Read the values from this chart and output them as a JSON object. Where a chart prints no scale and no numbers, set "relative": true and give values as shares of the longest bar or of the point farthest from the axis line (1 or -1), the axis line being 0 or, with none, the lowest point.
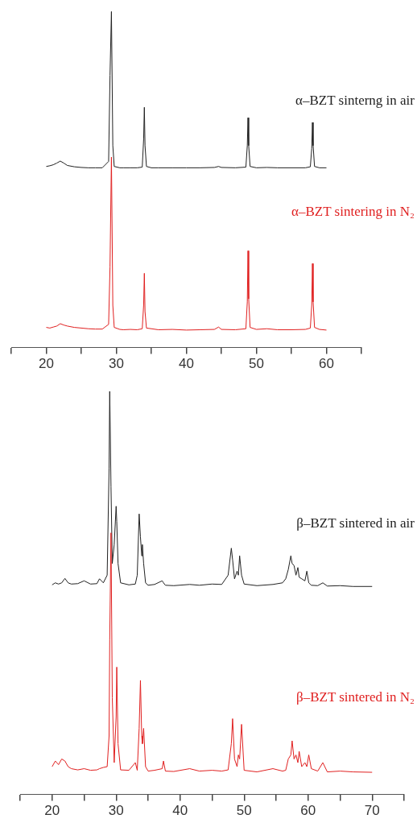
{
  "chart_data": [
    {
      "type": "line",
      "relative": true,
      "xlim": [
        15,
        65
      ],
      "xticks": [
        {
          "value": 15,
          "label": null
        },
        20,
        {
          "value": 25,
          "label": null
        },
        30,
        {
          "value": 35,
          "label": null
        },
        40,
        {
          "value": 45,
          "label": null
        },
        50,
        {
          "value": 55,
          "label": null
        },
        60,
        {
          "value": 65,
          "label": null
        }
      ],
      "grid": false,
      "legend": false,
      "marker": "none",
      "line_style": "solid",
      "series": [
        {
          "name": "α–BZT sintering in N₂",
          "color": "#e02020",
          "x": [
            20,
            20.5,
            21,
            21.5,
            22,
            22.5,
            23,
            24,
            25,
            26,
            27,
            28,
            28.9,
            29.1,
            29.3,
            29.5,
            29.7,
            30.5,
            31,
            32,
            33,
            33.7,
            33.9,
            34.0,
            34.1,
            34.3,
            35,
            36,
            38,
            40,
            42,
            44,
            44.6,
            45,
            47,
            48.5,
            48.7,
            48.8,
            48.9,
            49.1,
            50,
            51.5,
            53,
            55,
            57,
            57.7,
            57.9,
            58.0,
            58.1,
            58.3,
            59,
            60
          ],
          "values": [
            0.06,
            0.058,
            0.061,
            0.064,
            0.071,
            0.067,
            0.064,
            0.06,
            0.058,
            0.056,
            0.055,
            0.055,
            0.069,
            0.24,
            0.567,
            0.126,
            0.06,
            0.054,
            0.053,
            0.054,
            0.053,
            0.056,
            0.126,
            0.221,
            0.107,
            0.058,
            0.056,
            0.053,
            0.054,
            0.052,
            0.053,
            0.054,
            0.061,
            0.054,
            0.053,
            0.056,
            0.136,
            0.288,
            0.145,
            0.06,
            0.054,
            0.056,
            0.053,
            0.053,
            0.054,
            0.058,
            0.126,
            0.25,
            0.136,
            0.06,
            0.054,
            0.052
          ]
        },
        {
          "name": "α–BZT sinterng in air",
          "color": "#222222",
          "x": [
            20,
            20.5,
            21,
            21.5,
            22,
            22.5,
            23,
            24,
            25,
            26,
            27,
            28,
            28.9,
            29.1,
            29.3,
            29.5,
            29.7,
            30.5,
            31,
            32,
            33,
            33.7,
            33.9,
            34.0,
            34.1,
            34.3,
            35,
            36,
            38,
            40,
            42,
            44,
            44.6,
            45,
            47,
            48.5,
            48.7,
            48.8,
            48.9,
            49.1,
            50,
            51.5,
            53,
            55,
            57,
            57.7,
            57.9,
            58.0,
            58.1,
            58.3,
            59,
            60
          ],
          "values": [
            0.539,
            0.541,
            0.544,
            0.549,
            0.555,
            0.549,
            0.542,
            0.538,
            0.536,
            0.535,
            0.535,
            0.535,
            0.554,
            0.81,
            1.0,
            0.601,
            0.539,
            0.535,
            0.535,
            0.535,
            0.535,
            0.537,
            0.62,
            0.715,
            0.601,
            0.539,
            0.535,
            0.535,
            0.535,
            0.535,
            0.535,
            0.536,
            0.539,
            0.536,
            0.535,
            0.537,
            0.601,
            0.684,
            0.601,
            0.539,
            0.535,
            0.536,
            0.535,
            0.535,
            0.535,
            0.538,
            0.592,
            0.67,
            0.601,
            0.539,
            0.535,
            0.535
          ]
        }
      ]
    },
    {
      "type": "line",
      "relative": true,
      "xlim": [
        15,
        75
      ],
      "xticks": [
        {
          "value": 15,
          "label": null
        },
        20,
        {
          "value": 25,
          "label": null
        },
        30,
        {
          "value": 35,
          "label": null
        },
        40,
        {
          "value": 45,
          "label": null
        },
        50,
        {
          "value": 55,
          "label": null
        },
        60,
        {
          "value": 65,
          "label": null
        },
        70,
        {
          "value": 75,
          "label": null
        }
      ],
      "grid": false,
      "legend": false,
      "marker": "none",
      "line_style": "solid",
      "series": [
        {
          "name": "β–BZT sintered in N₂",
          "color": "#e02020",
          "x": [
            20,
            20.5,
            21,
            21.5,
            22,
            22.5,
            23,
            24,
            25,
            26,
            27,
            27.4,
            28,
            28.6,
            28.9,
            29.0,
            29.2,
            29.4,
            29.7,
            30.0,
            30.1,
            30.3,
            30.7,
            32,
            33,
            33.3,
            33.6,
            33.8,
            34.0,
            34.1,
            34.3,
            34.6,
            35,
            36,
            37.2,
            37.4,
            37.7,
            39,
            41.5,
            43,
            45,
            46.5,
            47.5,
            48.0,
            48.2,
            48.5,
            48.9,
            49.1,
            49.3,
            49.6,
            50,
            52,
            54.5,
            56,
            56.5,
            56.9,
            57.3,
            57.5,
            57.8,
            58.1,
            58.4,
            58.6,
            59,
            59.5,
            59.8,
            60.1,
            60.5,
            61.5,
            62.3,
            63,
            65,
            67,
            70
          ],
          "values": [
            0.069,
            0.083,
            0.074,
            0.088,
            0.083,
            0.069,
            0.064,
            0.061,
            0.064,
            0.06,
            0.061,
            0.064,
            0.067,
            0.069,
            0.145,
            0.383,
            0.649,
            0.24,
            0.079,
            0.193,
            0.316,
            0.126,
            0.061,
            0.06,
            0.079,
            0.06,
            0.164,
            0.283,
            0.145,
            0.126,
            0.164,
            0.069,
            0.058,
            0.06,
            0.064,
            0.083,
            0.058,
            0.057,
            0.064,
            0.058,
            0.06,
            0.058,
            0.061,
            0.126,
            0.188,
            0.088,
            0.069,
            0.098,
            0.088,
            0.174,
            0.06,
            0.056,
            0.064,
            0.058,
            0.06,
            0.088,
            0.098,
            0.133,
            0.088,
            0.098,
            0.079,
            0.107,
            0.069,
            0.079,
            0.069,
            0.098,
            0.064,
            0.058,
            0.079,
            0.056,
            0.058,
            0.056,
            0.055
          ]
        },
        {
          "name": "β–BZT sintered in air",
          "color": "#222222",
          "x": [
            20,
            20.5,
            21,
            21.5,
            22,
            22.5,
            23,
            24,
            25,
            26,
            27,
            27.4,
            28,
            28.6,
            28.9,
            29.0,
            29.2,
            29.4,
            29.7,
            30.0,
            30.1,
            30.3,
            30.7,
            32,
            33,
            33.3,
            33.6,
            33.8,
            34.0,
            34.1,
            34.3,
            34.6,
            35,
            36,
            37.2,
            37.4,
            37.7,
            39,
            41.5,
            43,
            45,
            46.5,
            47.5,
            48.0,
            48.2,
            48.5,
            48.9,
            49.1,
            49.3,
            49.6,
            50,
            52,
            54.5,
            56,
            56.5,
            56.9,
            57.3,
            57.5,
            57.8,
            58.1,
            58.4,
            58.6,
            59,
            59.5,
            59.8,
            60.1,
            60.5,
            61.5,
            62.3,
            63,
            65,
            67,
            70
          ],
          "values": [
            0.52,
            0.525,
            0.522,
            0.525,
            0.536,
            0.525,
            0.522,
            0.523,
            0.53,
            0.522,
            0.523,
            0.535,
            0.525,
            0.544,
            0.81,
            1.0,
            0.763,
            0.573,
            0.62,
            0.715,
            0.677,
            0.573,
            0.525,
            0.52,
            0.522,
            0.544,
            0.696,
            0.639,
            0.592,
            0.62,
            0.573,
            0.525,
            0.519,
            0.521,
            0.53,
            0.525,
            0.519,
            0.518,
            0.521,
            0.519,
            0.522,
            0.521,
            0.544,
            0.611,
            0.582,
            0.535,
            0.554,
            0.544,
            0.592,
            0.544,
            0.522,
            0.518,
            0.521,
            0.525,
            0.535,
            0.558,
            0.592,
            0.573,
            0.568,
            0.544,
            0.563,
            0.539,
            0.535,
            0.53,
            0.554,
            0.525,
            0.519,
            0.518,
            0.525,
            0.517,
            0.518,
            0.516,
            0.516
          ]
        }
      ]
    }
  ]
}
